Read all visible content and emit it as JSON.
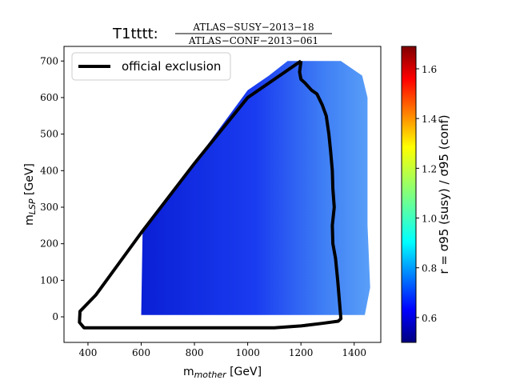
{
  "chart_data": {
    "type": "heatmap",
    "title": {
      "prefix": "T1tttt:",
      "numerator": "ATLAS−SUSY−2013−18",
      "denominator": "ATLAS−CONF−2013−061"
    },
    "xlabel": "m",
    "xlabel_sub": "mother",
    "xlabel_unit": " [GeV]",
    "ylabel": "m",
    "ylabel_sub": "LSP",
    "ylabel_unit": " [GeV]",
    "xlim": [
      310,
      1500
    ],
    "ylim": [
      -70,
      740
    ],
    "x_ticks": [
      400,
      600,
      800,
      1000,
      1200,
      1400
    ],
    "y_ticks": [
      0,
      100,
      200,
      300,
      400,
      500,
      600,
      700
    ],
    "colorbar": {
      "label": "r = σ95 (susy) / σ95 (conf)",
      "range": [
        0.5,
        1.69
      ],
      "ticks": [
        0.6,
        0.8,
        1.0,
        1.2,
        1.4,
        1.6
      ],
      "colormap": "jet"
    },
    "grid": false,
    "legend": {
      "placement": "top-left",
      "entries": [
        "official exclusion"
      ]
    },
    "heat_region": [
      [
        600,
        5
      ],
      [
        605,
        230
      ],
      [
        1000,
        620
      ],
      [
        1080,
        660
      ],
      [
        1150,
        700
      ],
      [
        1350,
        700
      ],
      [
        1430,
        660
      ],
      [
        1450,
        600
      ],
      [
        1450,
        250
      ],
      [
        1460,
        80
      ],
      [
        1440,
        5
      ]
    ],
    "value_model": {
      "low": 0.5,
      "high": 0.8,
      "gradient_start_x": 1000,
      "gradient_end_x": 1460
    },
    "exclusion_contour": {
      "name": "official exclusion",
      "color": "#000000",
      "x": [
        1200,
        1180,
        1140,
        1100,
        1000,
        800,
        600,
        430,
        370,
        368,
        385,
        600,
        800,
        1000,
        1100,
        1200,
        1280,
        1340,
        1350,
        1345,
        1338,
        1330,
        1320,
        1318,
        1325,
        1320,
        1318,
        1312,
        1305,
        1295,
        1280,
        1260,
        1240,
        1215,
        1200,
        1195,
        1200
      ],
      "y": [
        700,
        690,
        670,
        650,
        600,
        420,
        230,
        60,
        15,
        -15,
        -30,
        -30,
        -30,
        -30,
        -30,
        -25,
        -18,
        -12,
        -5,
        40,
        100,
        160,
        200,
        250,
        300,
        350,
        400,
        450,
        500,
        550,
        580,
        610,
        620,
        640,
        650,
        670,
        700
      ]
    }
  }
}
